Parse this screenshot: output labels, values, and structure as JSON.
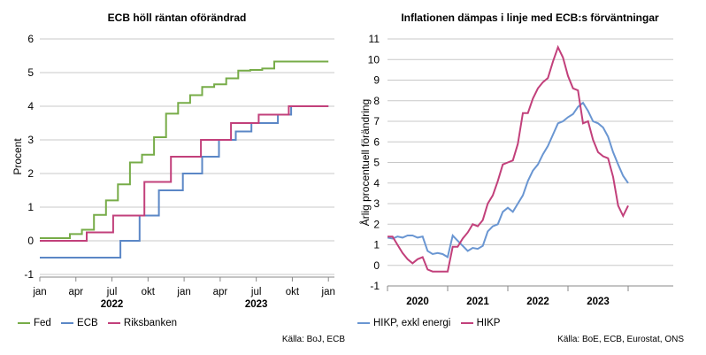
{
  "colors": {
    "fed": "#77ac48",
    "ecb": "#5b87c6",
    "riksbanken": "#c2407b",
    "hikp_core": "#6a96d2",
    "hikp": "#c2407b",
    "grid": "#c8c8c8",
    "axis": "#888888"
  },
  "left": {
    "title": "ECB höll räntan oförändrad",
    "source": "Källa: BoJ, ECB",
    "legend": [
      {
        "name": "Fed",
        "color": "#77ac48"
      },
      {
        "name": "ECB",
        "color": "#5b87c6"
      },
      {
        "name": "Riksbanken",
        "color": "#c2407b"
      }
    ]
  },
  "right": {
    "title": "Inflationen dämpas i linje med ECB:s förväntningar",
    "source": "Källa: BoE, ECB, Eurostat, ONS",
    "legend": [
      {
        "name": "HIKP, exkl energi",
        "color": "#6a96d2"
      },
      {
        "name": "HIKP",
        "color": "#c2407b"
      }
    ]
  },
  "chart_data": [
    {
      "type": "line",
      "title": "ECB höll räntan oförändrad",
      "ylabel": "Procent",
      "ylim": [
        -1,
        6
      ],
      "yticks": [
        "-1",
        "0",
        "1",
        "2",
        "3",
        "4",
        "5",
        "6"
      ],
      "xticks": [
        "jan",
        "apr",
        "jul",
        "okt",
        "jan",
        "apr",
        "jul",
        "okt",
        "jan"
      ],
      "year_labels": [
        "2022",
        "2023"
      ],
      "grid": "horizontal",
      "legend_position": "bottom",
      "step": true,
      "x_unit": "months since Jan 2022",
      "xlim": [
        0,
        24.5
      ],
      "series": [
        {
          "name": "Fed",
          "color": "#77ac48",
          "points": [
            [
              0,
              0.08
            ],
            [
              2.5,
              0.08
            ],
            [
              2.5,
              0.2
            ],
            [
              3.5,
              0.2
            ],
            [
              3.5,
              0.33
            ],
            [
              4.5,
              0.33
            ],
            [
              4.5,
              0.77
            ],
            [
              5.5,
              0.77
            ],
            [
              5.5,
              1.2
            ],
            [
              6.5,
              1.2
            ],
            [
              6.5,
              1.68
            ],
            [
              7.5,
              1.68
            ],
            [
              7.5,
              2.33
            ],
            [
              8.5,
              2.33
            ],
            [
              8.5,
              2.56
            ],
            [
              9.5,
              2.56
            ],
            [
              9.5,
              3.08
            ],
            [
              10.5,
              3.08
            ],
            [
              10.5,
              3.78
            ],
            [
              11.5,
              3.78
            ],
            [
              11.5,
              4.1
            ],
            [
              12.5,
              4.1
            ],
            [
              12.5,
              4.33
            ],
            [
              13.5,
              4.33
            ],
            [
              13.5,
              4.57
            ],
            [
              14.5,
              4.57
            ],
            [
              14.5,
              4.65
            ],
            [
              15.5,
              4.65
            ],
            [
              15.5,
              4.83
            ],
            [
              16.5,
              4.83
            ],
            [
              16.5,
              5.06
            ],
            [
              17.5,
              5.06
            ],
            [
              17.5,
              5.08
            ],
            [
              18.5,
              5.08
            ],
            [
              18.5,
              5.12
            ],
            [
              19.5,
              5.12
            ],
            [
              19.5,
              5.33
            ],
            [
              24,
              5.33
            ]
          ]
        },
        {
          "name": "ECB",
          "color": "#5b87c6",
          "points": [
            [
              0,
              -0.5
            ],
            [
              6.7,
              -0.5
            ],
            [
              6.7,
              0.0
            ],
            [
              8.3,
              0.0
            ],
            [
              8.3,
              0.75
            ],
            [
              9.9,
              0.75
            ],
            [
              9.9,
              1.5
            ],
            [
              11.9,
              1.5
            ],
            [
              11.9,
              2.0
            ],
            [
              13.5,
              2.0
            ],
            [
              13.5,
              2.5
            ],
            [
              14.9,
              2.5
            ],
            [
              14.9,
              3.0
            ],
            [
              16.3,
              3.0
            ],
            [
              16.3,
              3.25
            ],
            [
              17.6,
              3.25
            ],
            [
              17.6,
              3.5
            ],
            [
              19.8,
              3.5
            ],
            [
              19.8,
              3.75
            ],
            [
              20.9,
              3.75
            ],
            [
              20.9,
              4.0
            ],
            [
              24,
              4.0
            ]
          ]
        },
        {
          "name": "Riksbanken",
          "color": "#c2407b",
          "points": [
            [
              0,
              0.0
            ],
            [
              3.9,
              0.0
            ],
            [
              3.9,
              0.25
            ],
            [
              6.1,
              0.25
            ],
            [
              6.1,
              0.75
            ],
            [
              8.7,
              0.75
            ],
            [
              8.7,
              1.75
            ],
            [
              10.9,
              1.75
            ],
            [
              10.9,
              2.5
            ],
            [
              13.4,
              2.5
            ],
            [
              13.4,
              3.0
            ],
            [
              15.9,
              3.0
            ],
            [
              15.9,
              3.5
            ],
            [
              18.2,
              3.5
            ],
            [
              18.2,
              3.75
            ],
            [
              20.7,
              3.75
            ],
            [
              20.7,
              4.0
            ],
            [
              24,
              4.0
            ]
          ]
        }
      ]
    },
    {
      "type": "line",
      "title": "Inflationen dämpas i linje med ECB:s förväntningar",
      "ylabel": "Årlig procentuell förändring",
      "ylim": [
        -1,
        11
      ],
      "yticks": [
        "-1",
        "0",
        "1",
        "2",
        "3",
        "4",
        "5",
        "6",
        "7",
        "8",
        "9",
        "10",
        "11"
      ],
      "xticks": [
        "2020",
        "2021",
        "2022",
        "2023"
      ],
      "grid": "horizontal",
      "legend_position": "bottom",
      "x_unit": "months since Jan 2019",
      "xlim": [
        0,
        57
      ],
      "series": [
        {
          "name": "HIKP, exkl energi",
          "color": "#6a96d2",
          "points": [
            [
              0,
              1.35
            ],
            [
              1,
              1.3
            ],
            [
              2,
              1.4
            ],
            [
              3,
              1.35
            ],
            [
              4,
              1.45
            ],
            [
              5,
              1.45
            ],
            [
              6,
              1.35
            ],
            [
              7,
              1.4
            ],
            [
              8,
              0.7
            ],
            [
              9,
              0.55
            ],
            [
              10,
              0.6
            ],
            [
              11,
              0.55
            ],
            [
              12,
              0.4
            ],
            [
              13,
              1.45
            ],
            [
              14,
              1.2
            ],
            [
              15,
              0.95
            ],
            [
              16,
              0.7
            ],
            [
              17,
              0.85
            ],
            [
              18,
              0.8
            ],
            [
              19,
              0.95
            ],
            [
              20,
              1.65
            ],
            [
              21,
              1.9
            ],
            [
              22,
              2.0
            ],
            [
              23,
              2.6
            ],
            [
              24,
              2.8
            ],
            [
              25,
              2.6
            ],
            [
              26,
              3.0
            ],
            [
              27,
              3.4
            ],
            [
              28,
              4.1
            ],
            [
              29,
              4.6
            ],
            [
              30,
              4.9
            ],
            [
              31,
              5.4
            ],
            [
              32,
              5.8
            ],
            [
              33,
              6.35
            ],
            [
              34,
              6.9
            ],
            [
              35,
              7.0
            ],
            [
              36,
              7.2
            ],
            [
              37,
              7.35
            ],
            [
              38,
              7.7
            ],
            [
              39,
              7.9
            ],
            [
              40,
              7.5
            ],
            [
              41,
              7.0
            ],
            [
              42,
              6.9
            ],
            [
              43,
              6.7
            ],
            [
              44,
              6.25
            ],
            [
              45,
              5.5
            ],
            [
              46,
              4.9
            ],
            [
              47,
              4.35
            ],
            [
              48,
              4.0
            ]
          ]
        },
        {
          "name": "HIKP",
          "color": "#c2407b",
          "points": [
            [
              0,
              1.4
            ],
            [
              1,
              1.4
            ],
            [
              2,
              1.0
            ],
            [
              3,
              0.6
            ],
            [
              4,
              0.3
            ],
            [
              5,
              0.1
            ],
            [
              6,
              0.3
            ],
            [
              7,
              0.4
            ],
            [
              8,
              -0.2
            ],
            [
              9,
              -0.3
            ],
            [
              10,
              -0.3
            ],
            [
              11,
              -0.3
            ],
            [
              12,
              -0.3
            ],
            [
              13,
              0.9
            ],
            [
              14,
              0.9
            ],
            [
              15,
              1.3
            ],
            [
              16,
              1.6
            ],
            [
              17,
              2.0
            ],
            [
              18,
              1.9
            ],
            [
              19,
              2.2
            ],
            [
              20,
              3.0
            ],
            [
              21,
              3.4
            ],
            [
              22,
              4.1
            ],
            [
              23,
              4.9
            ],
            [
              24,
              5.0
            ],
            [
              25,
              5.1
            ],
            [
              26,
              5.9
            ],
            [
              27,
              7.4
            ],
            [
              28,
              7.4
            ],
            [
              29,
              8.1
            ],
            [
              30,
              8.6
            ],
            [
              31,
              8.9
            ],
            [
              32,
              9.1
            ],
            [
              33,
              9.9
            ],
            [
              34,
              10.6
            ],
            [
              35,
              10.1
            ],
            [
              36,
              9.2
            ],
            [
              37,
              8.6
            ],
            [
              38,
              8.5
            ],
            [
              39,
              6.9
            ],
            [
              40,
              7.0
            ],
            [
              41,
              6.1
            ],
            [
              42,
              5.5
            ],
            [
              43,
              5.3
            ],
            [
              44,
              5.2
            ],
            [
              45,
              4.3
            ],
            [
              46,
              2.9
            ],
            [
              47,
              2.4
            ],
            [
              48,
              2.9
            ]
          ]
        }
      ]
    }
  ]
}
